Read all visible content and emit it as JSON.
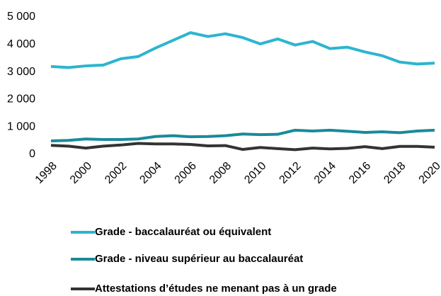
{
  "chart_data": {
    "type": "line",
    "x": [
      1998,
      1999,
      2000,
      2001,
      2002,
      2003,
      2004,
      2005,
      2006,
      2007,
      2008,
      2009,
      2010,
      2011,
      2012,
      2013,
      2014,
      2015,
      2016,
      2017,
      2018,
      2019,
      2020
    ],
    "series": [
      {
        "name": "Grade - baccalauréat ou équivalent",
        "color": "#2cb5d0",
        "values": [
          3200,
          3160,
          3220,
          3250,
          3480,
          3560,
          3870,
          4150,
          4430,
          4290,
          4390,
          4250,
          4020,
          4200,
          3980,
          4110,
          3850,
          3900,
          3730,
          3590,
          3360,
          3290,
          3320
        ]
      },
      {
        "name": "Grade - niveau supérieur au baccalauréat",
        "color": "#1a8a99",
        "values": [
          490,
          510,
          560,
          540,
          540,
          560,
          650,
          680,
          640,
          650,
          680,
          740,
          720,
          730,
          880,
          850,
          880,
          840,
          800,
          820,
          790,
          850,
          880
        ]
      },
      {
        "name": "Attestations d’études ne menant pas à un grade",
        "color": "#333333",
        "values": [
          330,
          300,
          230,
          300,
          340,
          400,
          380,
          380,
          360,
          310,
          320,
          180,
          250,
          210,
          170,
          230,
          200,
          220,
          280,
          210,
          290,
          290,
          260
        ]
      }
    ],
    "xlim": [
      1998,
      2020
    ],
    "xticks": [
      1998,
      2000,
      2002,
      2004,
      2006,
      2008,
      2010,
      2012,
      2014,
      2016,
      2018,
      2020
    ],
    "ylim": [
      0,
      5000
    ],
    "yticks": [
      0,
      {
        "value": 1000,
        "label": "1 000"
      },
      {
        "value": 2000,
        "label": "2 000"
      },
      {
        "value": 3000,
        "label": "3 000"
      },
      {
        "value": 4000,
        "label": "4 000"
      },
      {
        "value": 5000,
        "label": "5 000"
      }
    ],
    "legend": "bottom"
  }
}
